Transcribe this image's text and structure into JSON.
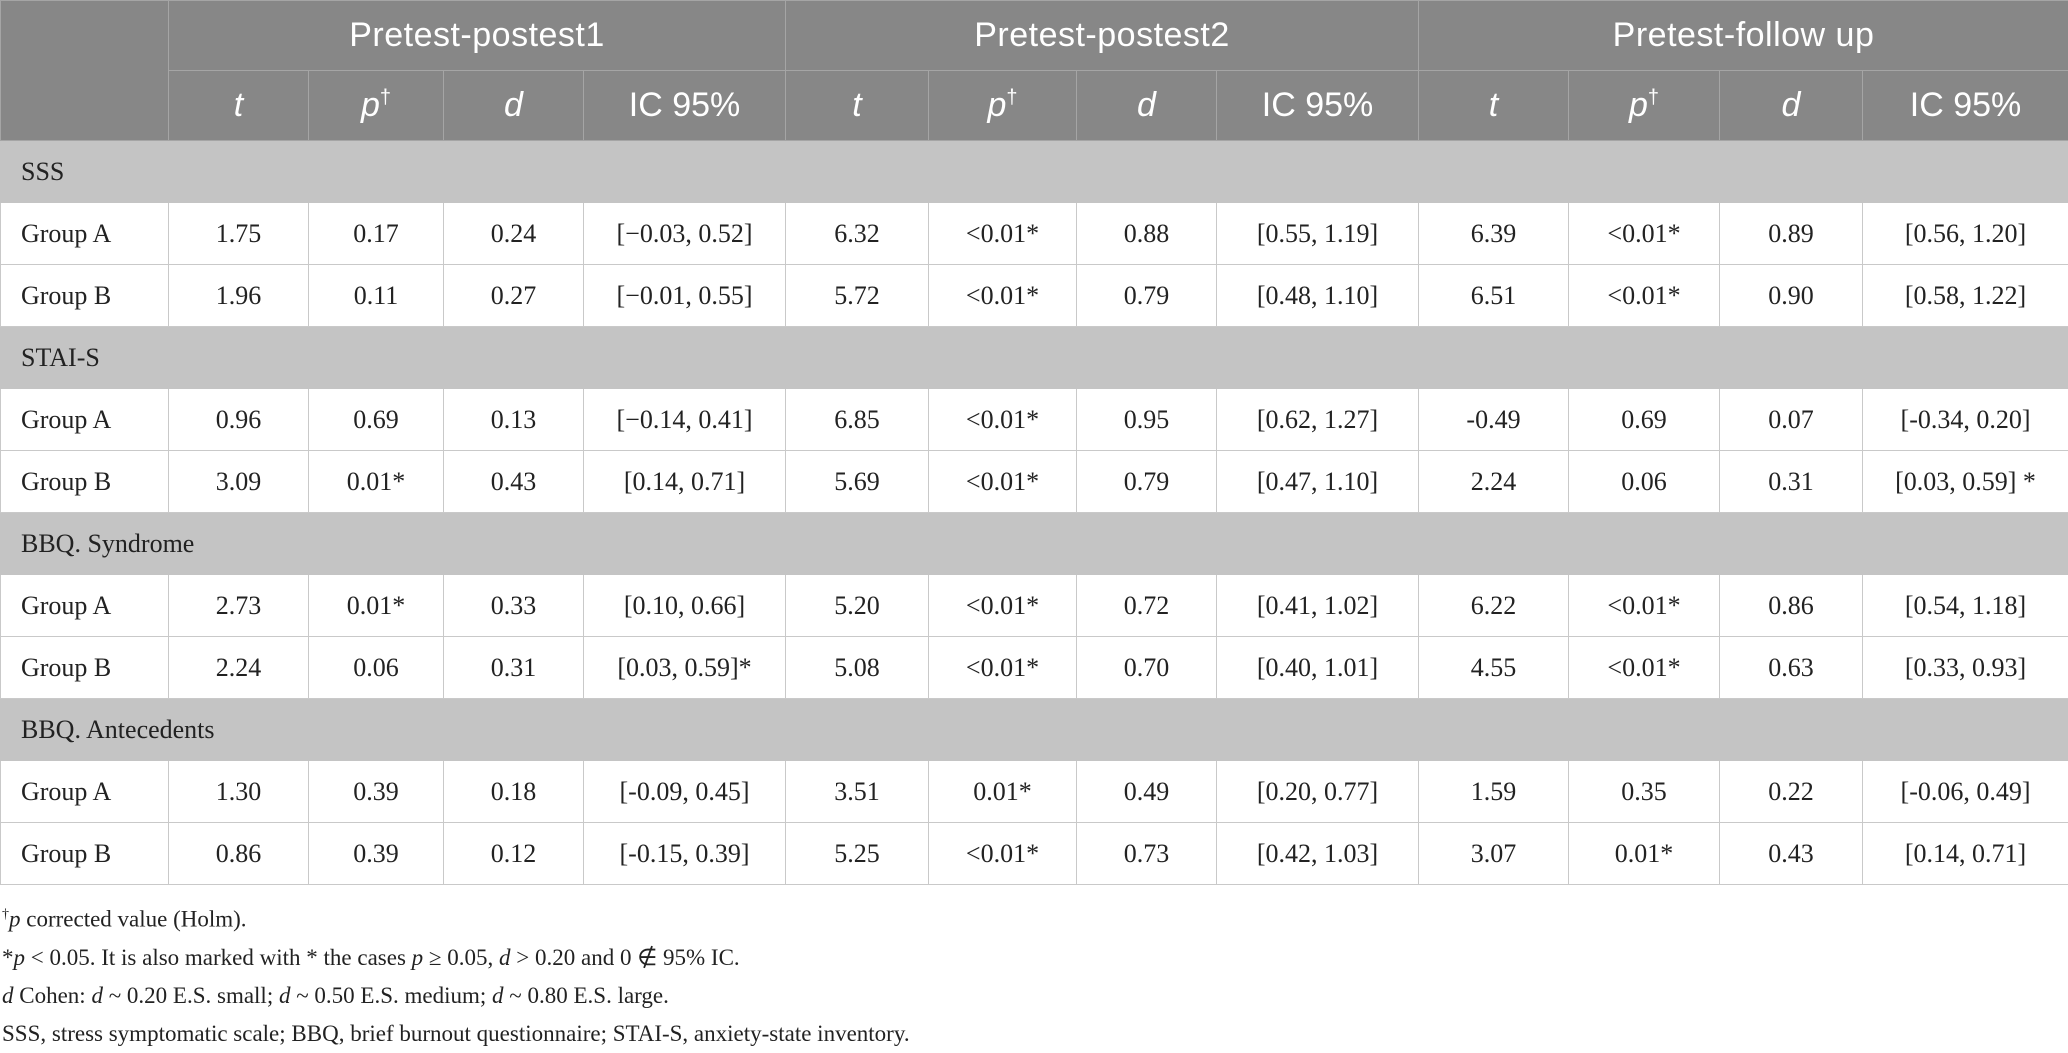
{
  "table": {
    "group_headers": [
      "Pretest-postest1",
      "Pretest-postest2",
      "Pretest-follow up"
    ],
    "column_headers": {
      "t": "t",
      "p": "p",
      "p_mark": "†",
      "d": "d",
      "ci": "IC 95%"
    },
    "sections": [
      {
        "label": "SSS",
        "rows": [
          {
            "label": "Group A",
            "values": [
              "1.75",
              "0.17",
              "0.24",
              "[−0.03, 0.52]",
              "6.32",
              "<0.01*",
              "0.88",
              "[0.55, 1.19]",
              "6.39",
              "<0.01*",
              "0.89",
              "[0.56, 1.20]"
            ]
          },
          {
            "label": "Group B",
            "values": [
              "1.96",
              "0.11",
              "0.27",
              "[−0.01, 0.55]",
              "5.72",
              "<0.01*",
              "0.79",
              "[0.48, 1.10]",
              "6.51",
              "<0.01*",
              "0.90",
              "[0.58, 1.22]"
            ]
          }
        ]
      },
      {
        "label": "STAI-S",
        "rows": [
          {
            "label": "Group A",
            "values": [
              "0.96",
              "0.69",
              "0.13",
              "[−0.14, 0.41]",
              "6.85",
              "<0.01*",
              "0.95",
              "[0.62, 1.27]",
              "-0.49",
              "0.69",
              "0.07",
              "[-0.34, 0.20]"
            ]
          },
          {
            "label": "Group B",
            "values": [
              "3.09",
              "0.01*",
              "0.43",
              "[0.14, 0.71]",
              "5.69",
              "<0.01*",
              "0.79",
              "[0.47, 1.10]",
              "2.24",
              "0.06",
              "0.31",
              "[0.03, 0.59] *"
            ]
          }
        ]
      },
      {
        "label": "BBQ. Syndrome",
        "rows": [
          {
            "label": "Group A",
            "values": [
              "2.73",
              "0.01*",
              "0.33",
              "[0.10, 0.66]",
              "5.20",
              "<0.01*",
              "0.72",
              "[0.41, 1.02]",
              "6.22",
              "<0.01*",
              "0.86",
              "[0.54, 1.18]"
            ]
          },
          {
            "label": "Group B",
            "values": [
              "2.24",
              "0.06",
              "0.31",
              "[0.03, 0.59]*",
              "5.08",
              "<0.01*",
              "0.70",
              "[0.40, 1.01]",
              "4.55",
              "<0.01*",
              "0.63",
              "[0.33, 0.93]"
            ]
          }
        ]
      },
      {
        "label": "BBQ. Antecedents",
        "rows": [
          {
            "label": "Group A",
            "values": [
              "1.30",
              "0.39",
              "0.18",
              "[-0.09, 0.45]",
              "3.51",
              "0.01*",
              "0.49",
              "[0.20, 0.77]",
              "1.59",
              "0.35",
              "0.22",
              "[-0.06, 0.49]"
            ]
          },
          {
            "label": "Group B",
            "values": [
              "0.86",
              "0.39",
              "0.12",
              "[-0.15, 0.39]",
              "5.25",
              "<0.01*",
              "0.73",
              "[0.42, 1.03]",
              "3.07",
              "0.01*",
              "0.43",
              "[0.14, 0.71]"
            ]
          }
        ]
      }
    ]
  },
  "notes": {
    "line1": {
      "mark": "†",
      "var": "p",
      "text": " corrected value (Holm)."
    },
    "line2": {
      "lead": "*",
      "var1": "p",
      "text1": " < 0.05. It is also marked with * the cases ",
      "var2": "p",
      "text2": " ≥ 0.05, ",
      "var3": "d",
      "text3": " > 0.20 and 0 ∉ 95% IC."
    },
    "line3": {
      "var1": "d",
      "text1": " Cohen: ",
      "var2": "d",
      "text2": " ~ 0.20 E.S. small; ",
      "var3": "d",
      "text3": " ~ 0.50 E.S. medium; ",
      "var4": "d",
      "text4": " ~ 0.80 E.S. large."
    },
    "line4": {
      "text": "SSS, stress symptomatic scale; BBQ, brief burnout questionnaire; STAI-S, anxiety-state inventory."
    }
  }
}
